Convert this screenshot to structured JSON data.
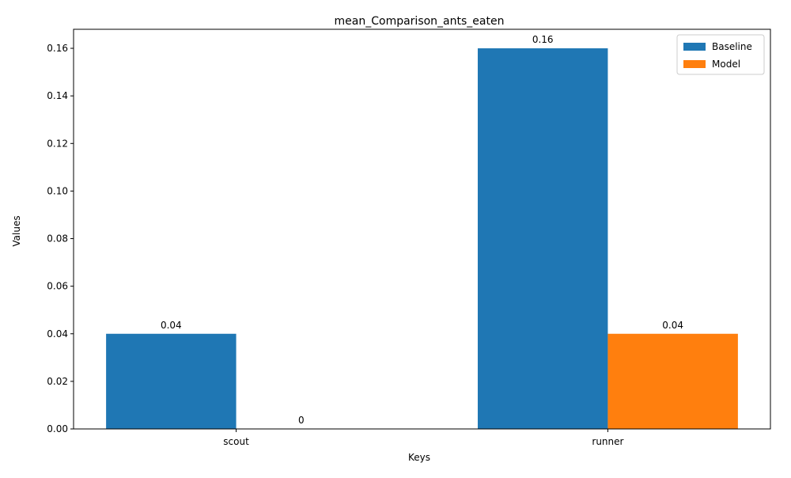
{
  "chart_data": {
    "type": "bar",
    "title": "mean_Comparison_ants_eaten",
    "xlabel": "Keys",
    "ylabel": "Values",
    "categories": [
      "scout",
      "runner"
    ],
    "series": [
      {
        "name": "Baseline",
        "values": [
          0.04,
          0.16
        ],
        "labels": [
          "0.04",
          "0.16"
        ],
        "color": "#1f77b4"
      },
      {
        "name": "Model",
        "values": [
          0,
          0.04
        ],
        "labels": [
          "0",
          "0.04"
        ],
        "color": "#ff7f0e"
      }
    ],
    "ylim": [
      0,
      0.168
    ],
    "yticks": [
      0.0,
      0.02,
      0.04,
      0.06,
      0.08,
      0.1,
      0.12,
      0.14,
      0.16
    ],
    "ytick_labels": [
      "0.00",
      "0.02",
      "0.04",
      "0.06",
      "0.08",
      "0.10",
      "0.12",
      "0.14",
      "0.16"
    ],
    "grid": false,
    "legend_position": "top-right"
  }
}
